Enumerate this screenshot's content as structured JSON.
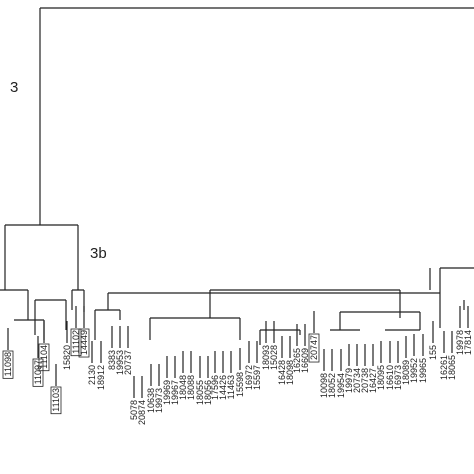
{
  "nodes": [
    {
      "label": "3"
    },
    {
      "label": "3b"
    }
  ],
  "leaves": [
    {
      "label": "11098",
      "boxed": true
    },
    {
      "label": "11097",
      "boxed": true
    },
    {
      "label": "11104",
      "boxed": true
    },
    {
      "label": "11103",
      "boxed": true
    },
    {
      "label": "15820",
      "boxed": false
    },
    {
      "label": "11102",
      "boxed": true
    },
    {
      "label": "14449",
      "boxed": true
    },
    {
      "label": "2130",
      "boxed": false
    },
    {
      "label": "18912",
      "boxed": false
    },
    {
      "label": "8383",
      "boxed": false
    },
    {
      "label": "19953",
      "boxed": false
    },
    {
      "label": "20737",
      "boxed": false
    },
    {
      "label": "5078",
      "boxed": false
    },
    {
      "label": "20874",
      "boxed": false
    },
    {
      "label": "10638",
      "boxed": false
    },
    {
      "label": "19973",
      "boxed": false
    },
    {
      "label": "19969",
      "boxed": false
    },
    {
      "label": "19967",
      "boxed": false
    },
    {
      "label": "18048",
      "boxed": false
    },
    {
      "label": "18088",
      "boxed": false
    },
    {
      "label": "18055",
      "boxed": false
    },
    {
      "label": "18056",
      "boxed": false
    },
    {
      "label": "17596",
      "boxed": false
    },
    {
      "label": "14426",
      "boxed": false
    },
    {
      "label": "11463",
      "boxed": false
    },
    {
      "label": "15598",
      "boxed": false
    },
    {
      "label": "16972",
      "boxed": false
    },
    {
      "label": "15597",
      "boxed": false
    },
    {
      "label": "18093",
      "boxed": false
    },
    {
      "label": "15028",
      "boxed": false
    },
    {
      "label": "16428",
      "boxed": false
    },
    {
      "label": "18098",
      "boxed": false
    },
    {
      "label": "16265",
      "boxed": false
    },
    {
      "label": "16609",
      "boxed": false
    },
    {
      "label": "20747",
      "boxed": true
    },
    {
      "label": "10098",
      "boxed": false
    },
    {
      "label": "18052",
      "boxed": false
    },
    {
      "label": "19954",
      "boxed": false
    },
    {
      "label": "19979",
      "boxed": false
    },
    {
      "label": "20734",
      "boxed": false
    },
    {
      "label": "20738",
      "boxed": false
    },
    {
      "label": "16427",
      "boxed": false
    },
    {
      "label": "18095",
      "boxed": false
    },
    {
      "label": "16610",
      "boxed": false
    },
    {
      "label": "16973",
      "boxed": false
    },
    {
      "label": "18089",
      "boxed": false
    },
    {
      "label": "19952",
      "boxed": false
    },
    {
      "label": "19965",
      "boxed": false
    },
    {
      "label": "155",
      "boxed": false
    },
    {
      "label": "16261",
      "boxed": false
    },
    {
      "label": "18065",
      "boxed": false
    },
    {
      "label": "19978",
      "boxed": false
    },
    {
      "label": "17814",
      "boxed": false
    }
  ]
}
